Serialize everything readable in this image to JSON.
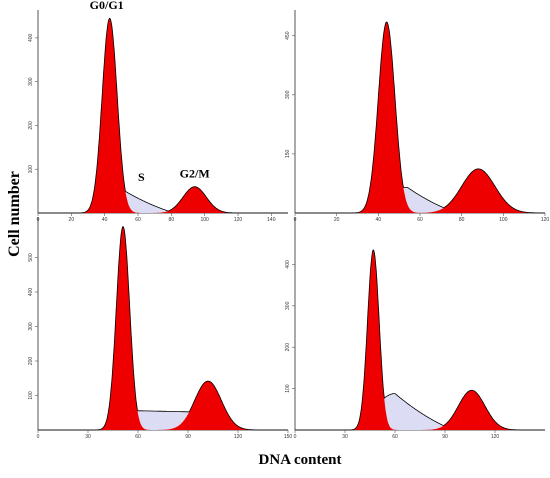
{
  "figure": {
    "xlabel": "DNA content",
    "ylabel": "Cell number"
  },
  "colors": {
    "peak_fill": "#ee0000",
    "s_phase_fill": "#dcdcf4",
    "outline": "#000000",
    "axis": "#555555"
  },
  "chart_data": [
    {
      "type": "area",
      "title": "",
      "xlim": [
        0,
        150
      ],
      "x_ticks": [
        "0",
        "20",
        "40",
        "60",
        "80",
        "100",
        "120",
        "140"
      ],
      "ylim": [
        0,
        450
      ],
      "y_ticks": [
        "100",
        "200",
        "300",
        "400"
      ],
      "grid": false,
      "annotations": [
        "G0/G1",
        "S",
        "G2/M"
      ],
      "series": [
        {
          "name": "G0/G1",
          "peak_x": 43,
          "peak_height": 445,
          "width": 4.5
        },
        {
          "name": "S",
          "shape": "bump",
          "start_x": 36,
          "peak_x": 50,
          "end_x": 82,
          "height": 55
        },
        {
          "name": "G2/M",
          "peak_x": 94,
          "peak_height": 60,
          "width": 7
        }
      ]
    },
    {
      "type": "area",
      "title": "",
      "xlim": [
        0,
        120
      ],
      "x_ticks": [
        "0",
        "20",
        "40",
        "60",
        "80",
        "100",
        "120"
      ],
      "ylim": [
        0,
        500
      ],
      "y_ticks": [
        "150",
        "300",
        "450"
      ],
      "grid": false,
      "series": [
        {
          "name": "G0/G1",
          "peak_x": 44,
          "peak_height": 485,
          "width": 4
        },
        {
          "name": "S",
          "shape": "bump",
          "start_x": 34,
          "peak_x": 54,
          "end_x": 78,
          "height": 65
        },
        {
          "name": "G2/M",
          "peak_x": 88,
          "peak_height": 112,
          "width": 8
        }
      ]
    },
    {
      "type": "area",
      "title": "",
      "xlim": [
        0,
        150
      ],
      "x_ticks": [
        "0",
        "30",
        "60",
        "90",
        "120",
        "150"
      ],
      "ylim": [
        0,
        600
      ],
      "y_ticks": [
        "100",
        "200",
        "300",
        "400",
        "500"
      ],
      "grid": false,
      "series": [
        {
          "name": "G0/G1",
          "peak_x": 51,
          "peak_height": 590,
          "width": 4
        },
        {
          "name": "S",
          "shape": "plateau",
          "start_x": 46,
          "peak_x": 68,
          "end_x": 110,
          "height": 55
        },
        {
          "name": "G2/M",
          "peak_x": 102,
          "peak_height": 142,
          "width": 8
        }
      ]
    },
    {
      "type": "area",
      "title": "",
      "xlim": [
        0,
        150
      ],
      "x_ticks": [
        "0",
        "30",
        "60",
        "90",
        "120"
      ],
      "ylim": [
        0,
        500
      ],
      "y_ticks": [
        "100",
        "200",
        "300",
        "400"
      ],
      "grid": false,
      "series": [
        {
          "name": "G0/G1",
          "peak_x": 47,
          "peak_height": 435,
          "width": 3.5
        },
        {
          "name": "S",
          "shape": "bump",
          "start_x": 40,
          "peak_x": 60,
          "end_x": 95,
          "height": 88
        },
        {
          "name": "G2/M",
          "peak_x": 106,
          "peak_height": 96,
          "width": 8
        }
      ]
    }
  ]
}
